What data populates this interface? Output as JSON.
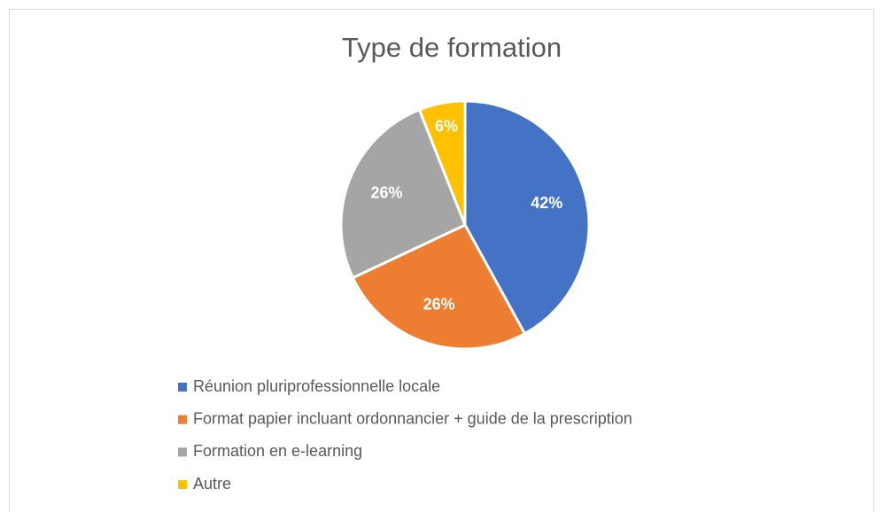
{
  "chart_data": {
    "type": "pie",
    "title": "Type de formation",
    "categories": [
      "Réunion pluriprofessionnelle locale",
      "Format papier incluant ordonnancier + guide de la prescription",
      "Formation en e-learning",
      "Autre"
    ],
    "values": [
      42,
      26,
      26,
      6
    ],
    "value_labels": [
      "42%",
      "26%",
      "26%",
      "6%"
    ],
    "colors": [
      "#4472c4",
      "#ed7d31",
      "#a5a5a5",
      "#ffc000"
    ],
    "legend": "bottom"
  }
}
